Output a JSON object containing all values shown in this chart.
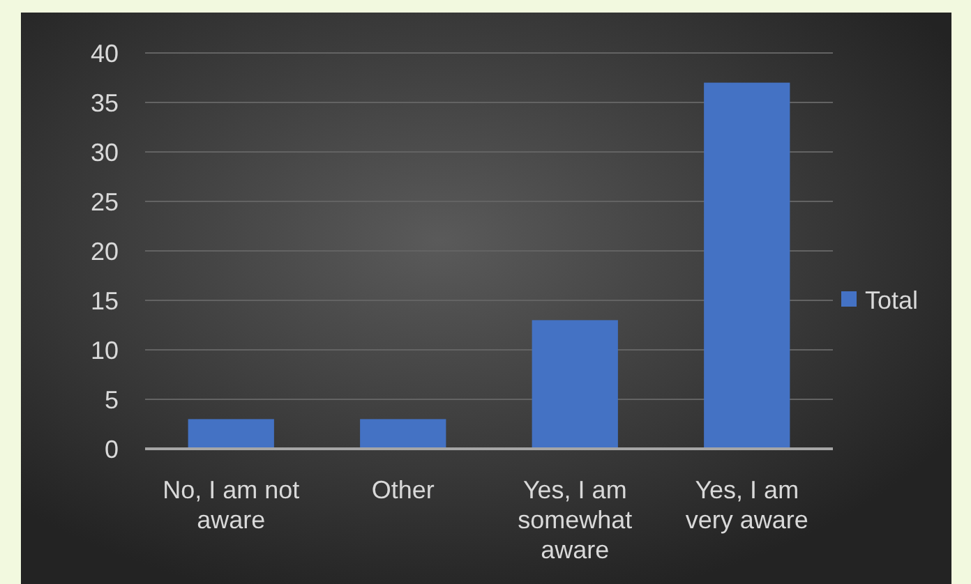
{
  "chart_data": {
    "type": "bar",
    "categories": [
      "No, I am not aware",
      "Other",
      "Yes, I am somewhat aware",
      "Yes, I am very aware"
    ],
    "series": [
      {
        "name": "Total",
        "color": "#4472c4",
        "values": [
          3,
          3,
          13,
          37
        ]
      }
    ],
    "ylim": [
      0,
      40
    ],
    "yticks": [
      0,
      5,
      10,
      15,
      20,
      25,
      30,
      35,
      40
    ],
    "grid": "y",
    "legend": "right"
  }
}
